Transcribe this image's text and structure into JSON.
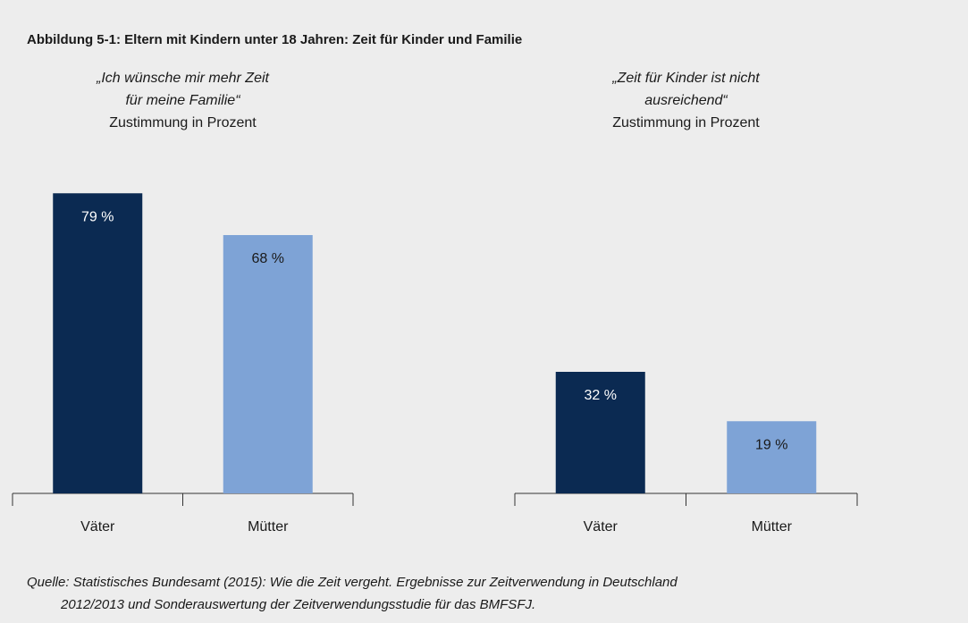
{
  "title": "Abbildung 5-1: Eltern mit Kindern unter 18 Jahren: Zeit für Kinder und Familie",
  "chart_data": [
    {
      "type": "bar",
      "title": [
        "„Ich wünsche mir mehr Zeit",
        "für meine Familie“"
      ],
      "subtitle": "Zustimmung in Prozent",
      "categories": [
        "Väter",
        "Mütter"
      ],
      "values": [
        79,
        68
      ],
      "value_labels": [
        "79 %",
        "68 %"
      ],
      "colors": [
        "#0b2a52",
        "#7ea3d6"
      ],
      "ylim": [
        0,
        100
      ]
    },
    {
      "type": "bar",
      "title": [
        "„Zeit für Kinder ist nicht",
        "ausreichend“"
      ],
      "subtitle": "Zustimmung in Prozent",
      "categories": [
        "Väter",
        "Mütter"
      ],
      "values": [
        32,
        19
      ],
      "value_labels": [
        "32 %",
        "19 %"
      ],
      "colors": [
        "#0b2a52",
        "#7ea3d6"
      ],
      "ylim": [
        0,
        100
      ]
    }
  ],
  "source": [
    "Quelle: Statistisches Bundesamt (2015): Wie die Zeit vergeht. Ergebnisse zur Zeitverwendung in Deutschland",
    "2012/2013 und Sonderauswertung der Zeitverwendungsstudie für das BMFSFJ."
  ]
}
